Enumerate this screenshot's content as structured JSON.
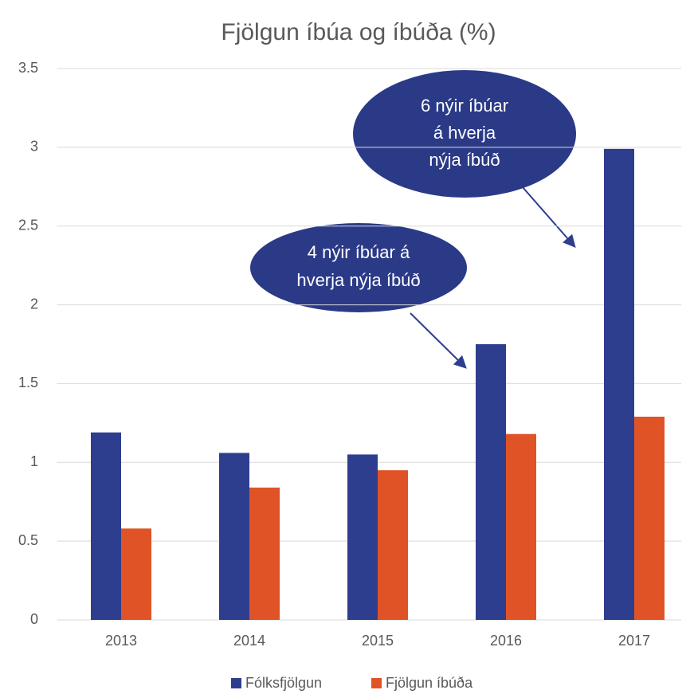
{
  "chart_data": {
    "type": "bar",
    "title": "Fjölgun íbúa og íbúða (%)",
    "categories": [
      "2013",
      "2014",
      "2015",
      "2016",
      "2017"
    ],
    "series": [
      {
        "name": "Fólksfjölgun",
        "color": "#2e3e8e",
        "values": [
          1.19,
          1.06,
          1.05,
          1.75,
          2.99
        ]
      },
      {
        "name": "Fjölgun íbúða",
        "color": "#df5327",
        "values": [
          0.58,
          0.84,
          0.95,
          1.18,
          1.29
        ]
      }
    ],
    "ylim": [
      0,
      3.5
    ],
    "yticks": [
      0,
      0.5,
      1,
      1.5,
      2,
      2.5,
      3,
      3.5
    ],
    "grid": true,
    "annotations": [
      {
        "lines": [
          "4 nýir íbúar á",
          "hverja nýja íbúð"
        ]
      },
      {
        "lines": [
          "6 nýir íbúar",
          "á hverja",
          "nýja íbúð"
        ]
      }
    ]
  }
}
